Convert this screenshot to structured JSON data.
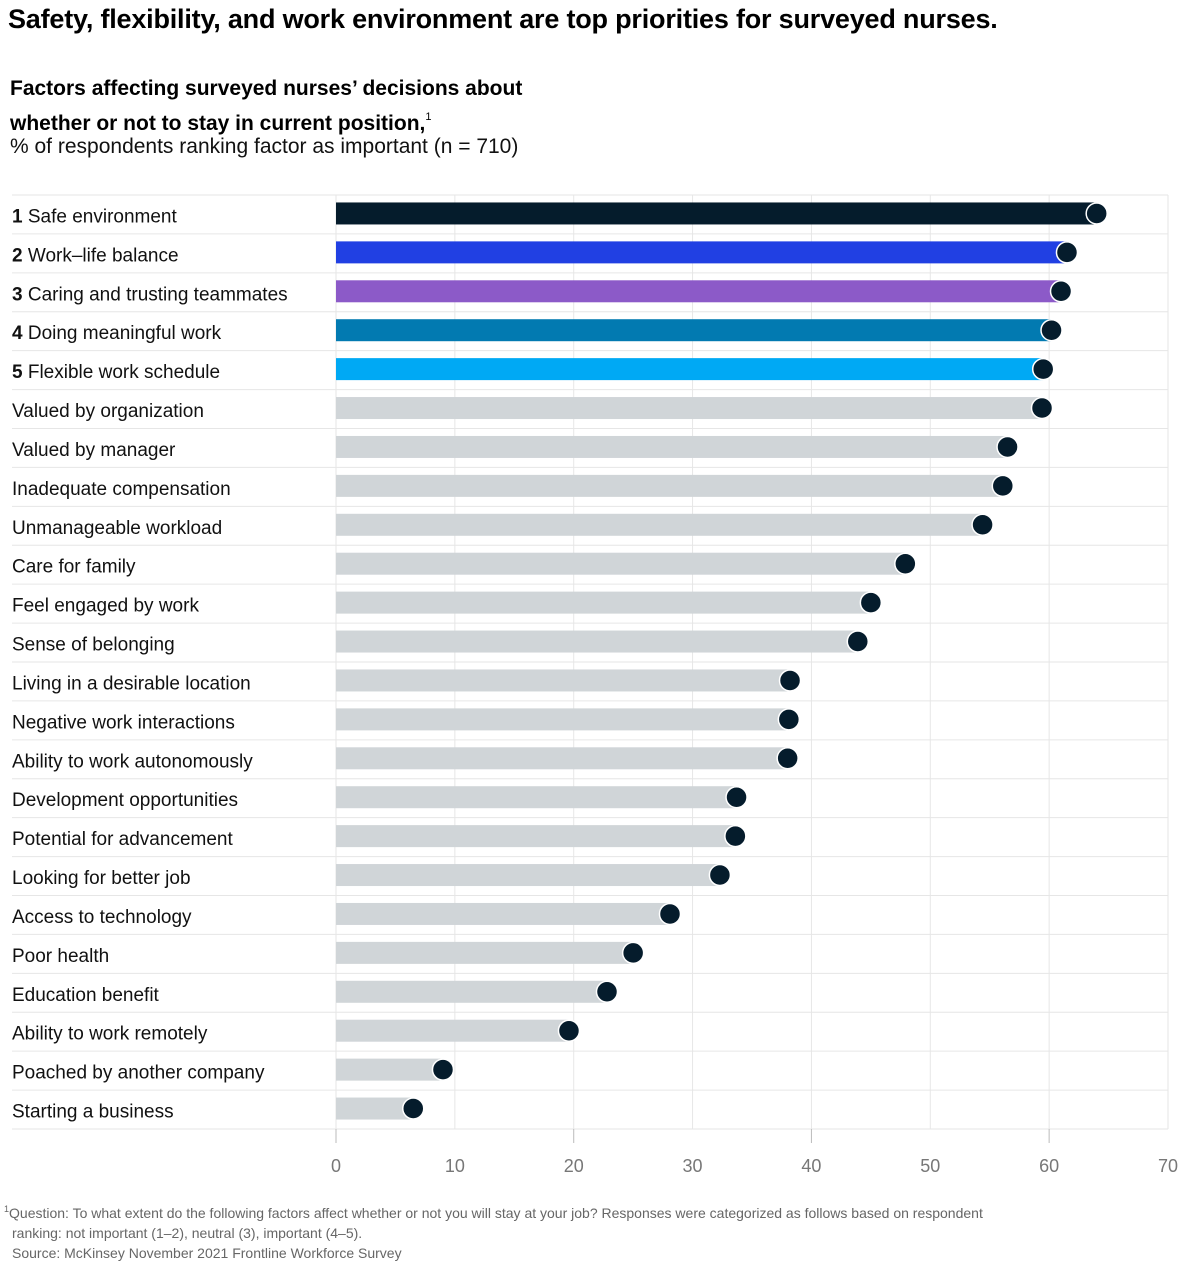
{
  "header": {
    "title": "Safety, flexibility, and work environment are top priorities for surveyed nurses.",
    "subtitle_line1": "Factors affecting surveyed nurses’ decisions about",
    "subtitle_line2": "whether or not to stay in current position,",
    "subtitle_footnote_marker": "1",
    "units": "% of respondents ranking factor as important (n = 710)"
  },
  "chart_data": {
    "type": "bar",
    "title": "Factors affecting surveyed nurses’ decisions about whether or not to stay in current position",
    "xlabel": "",
    "ylabel": "% of respondents ranking factor as important (n = 710)",
    "xlim": [
      0,
      70
    ],
    "x_ticks": [
      0,
      10,
      20,
      30,
      40,
      50,
      60,
      70
    ],
    "grid": true,
    "orientation": "horizontal",
    "categories": [
      {
        "rank": "1",
        "label": "Safe environment",
        "value": 64,
        "color": "#051c2c"
      },
      {
        "rank": "2",
        "label": "Work–life balance",
        "value": 61.5,
        "color": "#2140e3"
      },
      {
        "rank": "3",
        "label": "Caring and trusting teammates",
        "value": 61,
        "color": "#8c5ac8"
      },
      {
        "rank": "4",
        "label": "Doing meaningful work",
        "value": 60.2,
        "color": "#027ab1"
      },
      {
        "rank": "5",
        "label": "Flexible work schedule",
        "value": 59.5,
        "color": "#00a9f4"
      },
      {
        "rank": "",
        "label": "Valued by organization",
        "value": 59.4,
        "color": "#d0d5d8"
      },
      {
        "rank": "",
        "label": "Valued by manager",
        "value": 56.5,
        "color": "#d0d5d8"
      },
      {
        "rank": "",
        "label": "Inadequate compensation",
        "value": 56.1,
        "color": "#d0d5d8"
      },
      {
        "rank": "",
        "label": "Unmanageable workload",
        "value": 54.4,
        "color": "#d0d5d8"
      },
      {
        "rank": "",
        "label": "Care for family",
        "value": 47.9,
        "color": "#d0d5d8"
      },
      {
        "rank": "",
        "label": "Feel engaged by work",
        "value": 45,
        "color": "#d0d5d8"
      },
      {
        "rank": "",
        "label": "Sense of belonging",
        "value": 43.9,
        "color": "#d0d5d8"
      },
      {
        "rank": "",
        "label": "Living in a desirable location",
        "value": 38.2,
        "color": "#d0d5d8"
      },
      {
        "rank": "",
        "label": "Negative work interactions",
        "value": 38.1,
        "color": "#d0d5d8"
      },
      {
        "rank": "",
        "label": "Ability to work autonomously",
        "value": 38,
        "color": "#d0d5d8"
      },
      {
        "rank": "",
        "label": "Development opportunities",
        "value": 33.7,
        "color": "#d0d5d8"
      },
      {
        "rank": "",
        "label": "Potential for advancement",
        "value": 33.6,
        "color": "#d0d5d8"
      },
      {
        "rank": "",
        "label": "Looking for better job",
        "value": 32.3,
        "color": "#d0d5d8"
      },
      {
        "rank": "",
        "label": "Access to technology",
        "value": 28.1,
        "color": "#d0d5d8"
      },
      {
        "rank": "",
        "label": "Poor health",
        "value": 25,
        "color": "#d0d5d8"
      },
      {
        "rank": "",
        "label": "Education benefit",
        "value": 22.8,
        "color": "#d0d5d8"
      },
      {
        "rank": "",
        "label": "Ability to work remotely",
        "value": 19.6,
        "color": "#d0d5d8"
      },
      {
        "rank": "",
        "label": "Poached by another company",
        "value": 9,
        "color": "#d0d5d8"
      },
      {
        "rank": "",
        "label": "Starting a business",
        "value": 6.5,
        "color": "#d0d5d8"
      }
    ],
    "dot_color": "#051c2c"
  },
  "footnote": {
    "marker": "1",
    "line1": "Question: To what extent do the following factors affect whether or not you will stay at your job? Responses were categorized as follows based on respondent",
    "line2": "ranking: not important (1–2), neutral (3), important (4–5).",
    "source": "Source: McKinsey November 2021 Frontline Workforce Survey"
  }
}
